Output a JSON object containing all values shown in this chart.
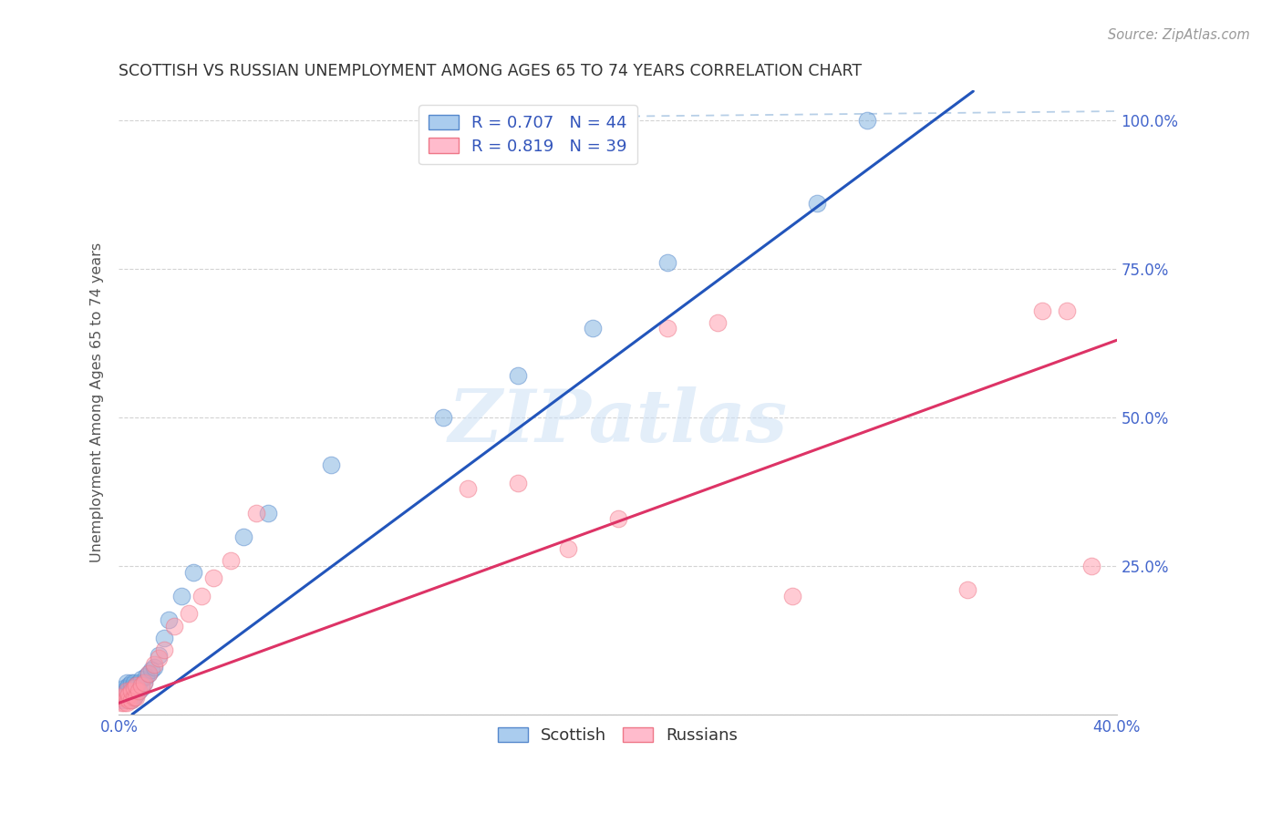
{
  "title": "SCOTTISH VS RUSSIAN UNEMPLOYMENT AMONG AGES 65 TO 74 YEARS CORRELATION CHART",
  "source": "Source: ZipAtlas.com",
  "ylabel": "Unemployment Among Ages 65 to 74 years",
  "xlim": [
    0.0,
    0.4
  ],
  "ylim": [
    0.0,
    1.05
  ],
  "xticks": [
    0.0,
    0.05,
    0.1,
    0.15,
    0.2,
    0.25,
    0.3,
    0.35,
    0.4
  ],
  "xticklabels": [
    "0.0%",
    "",
    "",
    "",
    "",
    "",
    "",
    "",
    "40.0%"
  ],
  "yticks": [
    0.0,
    0.25,
    0.5,
    0.75,
    1.0
  ],
  "yticklabels_right": [
    "",
    "25.0%",
    "50.0%",
    "75.0%",
    "100.0%"
  ],
  "background_color": "#ffffff",
  "grid_color": "#c8c8c8",
  "scottish_color_face": "#7aaede",
  "scottish_color_edge": "#5588cc",
  "russian_color_face": "#ff99aa",
  "russian_color_edge": "#ee7788",
  "scottish_line_color": "#2255bb",
  "russian_line_color": "#dd3366",
  "diag_line_color": "#aabbdd",
  "tick_color": "#4466cc",
  "scottish_R": "0.707",
  "scottish_N": "44",
  "russian_R": "0.819",
  "russian_N": "39",
  "scottish_line_x0": 0.005,
  "scottish_line_y0": 0.0,
  "scottish_line_x1": 0.285,
  "scottish_line_y1": 0.87,
  "russian_line_x0": 0.0,
  "russian_line_y0": 0.02,
  "russian_line_x1": 0.4,
  "russian_line_y1": 0.63,
  "diag_line_x0": 0.17,
  "diag_line_y0": 1.01,
  "diag_line_x1": 0.4,
  "diag_line_y1": 1.01,
  "watermark": "ZIPatlas",
  "scottish_points_x": [
    0.001,
    0.001,
    0.002,
    0.002,
    0.002,
    0.003,
    0.003,
    0.003,
    0.003,
    0.004,
    0.004,
    0.004,
    0.005,
    0.005,
    0.005,
    0.005,
    0.006,
    0.006,
    0.006,
    0.007,
    0.007,
    0.008,
    0.008,
    0.009,
    0.009,
    0.01,
    0.011,
    0.012,
    0.013,
    0.014,
    0.016,
    0.018,
    0.02,
    0.025,
    0.03,
    0.05,
    0.06,
    0.085,
    0.13,
    0.16,
    0.19,
    0.22,
    0.28,
    0.3
  ],
  "scottish_points_y": [
    0.025,
    0.035,
    0.025,
    0.035,
    0.045,
    0.025,
    0.035,
    0.045,
    0.055,
    0.03,
    0.04,
    0.05,
    0.025,
    0.035,
    0.045,
    0.055,
    0.03,
    0.045,
    0.055,
    0.035,
    0.05,
    0.04,
    0.055,
    0.045,
    0.06,
    0.055,
    0.065,
    0.07,
    0.075,
    0.08,
    0.1,
    0.13,
    0.16,
    0.2,
    0.24,
    0.3,
    0.34,
    0.42,
    0.5,
    0.57,
    0.65,
    0.76,
    0.86,
    1.0
  ],
  "russian_points_x": [
    0.001,
    0.001,
    0.002,
    0.002,
    0.003,
    0.003,
    0.003,
    0.004,
    0.004,
    0.005,
    0.005,
    0.006,
    0.006,
    0.007,
    0.007,
    0.008,
    0.009,
    0.01,
    0.012,
    0.014,
    0.016,
    0.018,
    0.022,
    0.028,
    0.033,
    0.038,
    0.045,
    0.055,
    0.14,
    0.16,
    0.18,
    0.2,
    0.22,
    0.24,
    0.27,
    0.34,
    0.37,
    0.38,
    0.39
  ],
  "russian_points_y": [
    0.02,
    0.03,
    0.02,
    0.03,
    0.02,
    0.03,
    0.04,
    0.025,
    0.035,
    0.025,
    0.04,
    0.03,
    0.045,
    0.03,
    0.05,
    0.04,
    0.05,
    0.055,
    0.07,
    0.085,
    0.095,
    0.11,
    0.15,
    0.17,
    0.2,
    0.23,
    0.26,
    0.34,
    0.38,
    0.39,
    0.28,
    0.33,
    0.65,
    0.66,
    0.2,
    0.21,
    0.68,
    0.68,
    0.25
  ]
}
